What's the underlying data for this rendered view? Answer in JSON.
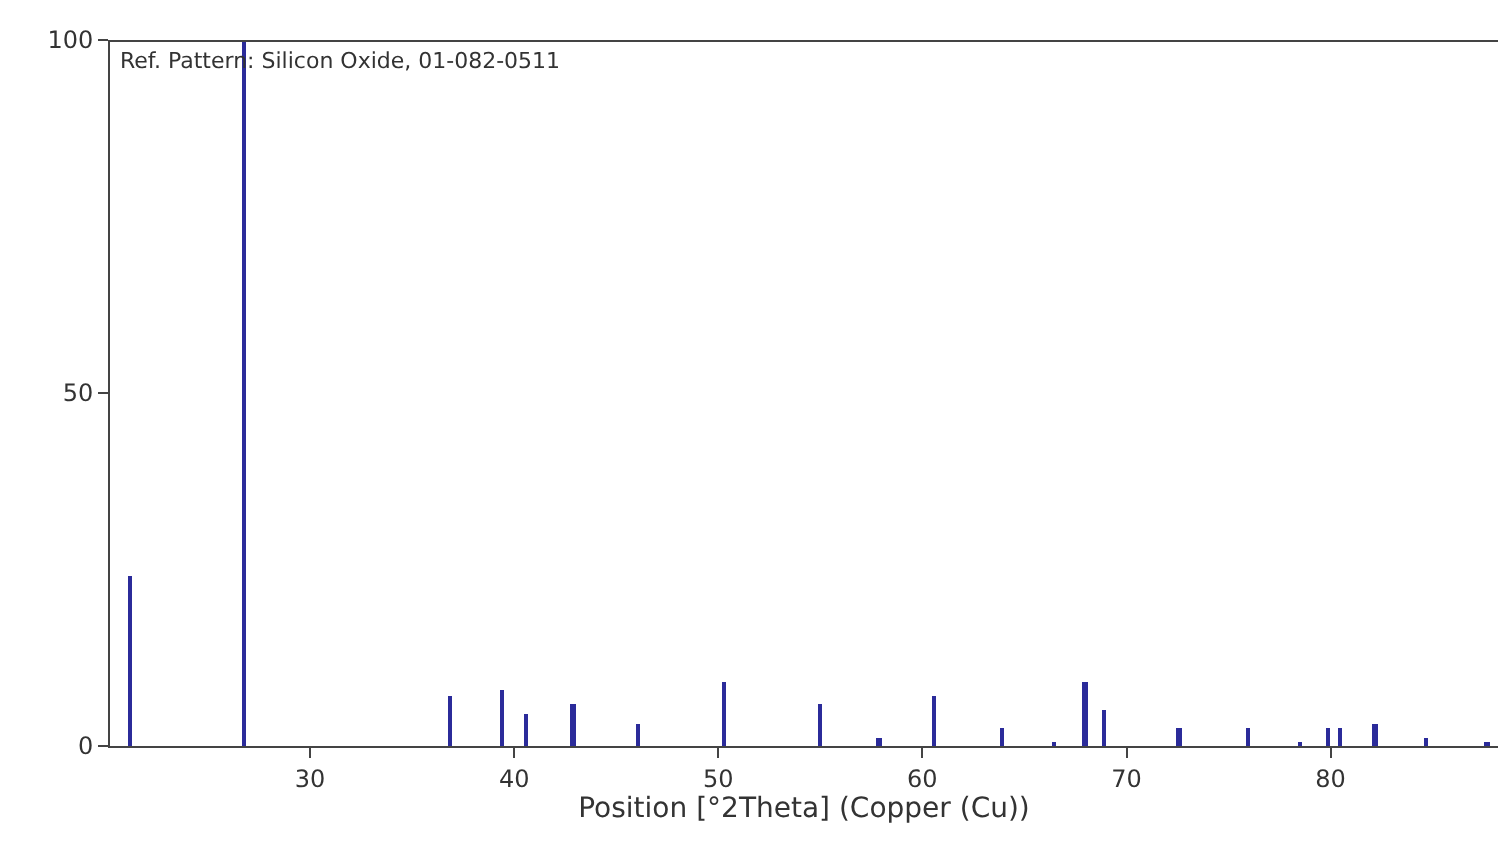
{
  "chart_data": {
    "type": "bar",
    "xlabel": "Position [°2Theta] (Copper (Cu))",
    "annotations": [
      "Ref. Pattern: Silicon Oxide, 01-082-0511"
    ],
    "x": [
      21.2,
      26.8,
      36.9,
      39.4,
      40.6,
      42.9,
      46.1,
      50.3,
      55.0,
      57.9,
      60.6,
      63.9,
      66.5,
      68.0,
      68.9,
      72.6,
      76.0,
      78.5,
      79.9,
      80.5,
      82.2,
      84.7,
      87.7
    ],
    "values": [
      24,
      100,
      7,
      8,
      4.5,
      6,
      3,
      9,
      6,
      1,
      7,
      2.5,
      0.7,
      9,
      5,
      2.5,
      2.5,
      0.7,
      2.5,
      2.5,
      3,
      1,
      0.7
    ],
    "color": "#2b2b9a",
    "xlim": [
      20.2,
      88.2
    ],
    "ylim": [
      0,
      100
    ],
    "xticks": [
      30,
      40,
      50,
      60,
      70,
      80
    ],
    "yticks": [
      0,
      50,
      100
    ]
  }
}
